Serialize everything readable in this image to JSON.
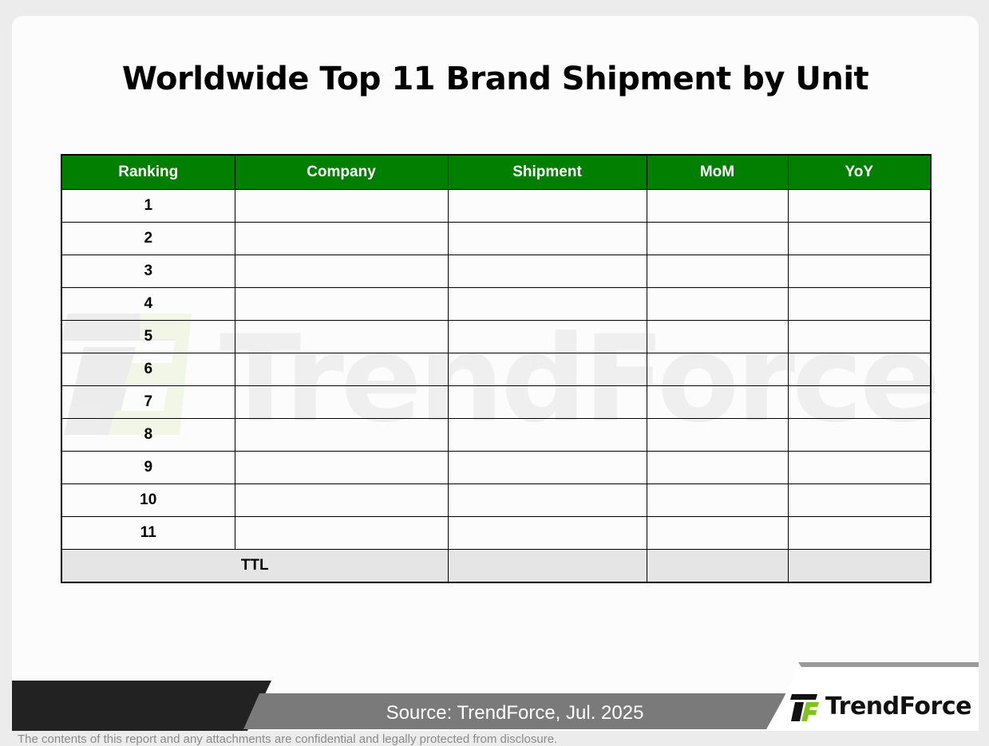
{
  "title": "Worldwide Top 11 Brand Shipment by Unit",
  "table": {
    "headers": [
      "Ranking",
      "Company",
      "Shipment",
      "MoM",
      "YoY"
    ],
    "rows": [
      {
        "rank": "1",
        "company": "",
        "shipment": "",
        "mom": "",
        "yoy": ""
      },
      {
        "rank": "2",
        "company": "",
        "shipment": "",
        "mom": "",
        "yoy": ""
      },
      {
        "rank": "3",
        "company": "",
        "shipment": "",
        "mom": "",
        "yoy": ""
      },
      {
        "rank": "4",
        "company": "",
        "shipment": "",
        "mom": "",
        "yoy": ""
      },
      {
        "rank": "5",
        "company": "",
        "shipment": "",
        "mom": "",
        "yoy": ""
      },
      {
        "rank": "6",
        "company": "",
        "shipment": "",
        "mom": "",
        "yoy": ""
      },
      {
        "rank": "7",
        "company": "",
        "shipment": "",
        "mom": "",
        "yoy": ""
      },
      {
        "rank": "8",
        "company": "",
        "shipment": "",
        "mom": "",
        "yoy": ""
      },
      {
        "rank": "9",
        "company": "",
        "shipment": "",
        "mom": "",
        "yoy": ""
      },
      {
        "rank": "10",
        "company": "",
        "shipment": "",
        "mom": "",
        "yoy": ""
      },
      {
        "rank": "11",
        "company": "",
        "shipment": "",
        "mom": "",
        "yoy": ""
      }
    ],
    "total": {
      "label": "TTL",
      "shipment": "",
      "mom": "",
      "yoy": ""
    }
  },
  "watermark_text": "TrendForce",
  "footer": {
    "source": "Source: TrendForce, Jul. 2025",
    "brand": "TrendForce",
    "disclaimer": "The contents of this report and any attachments are confidential and legally protected from disclosure."
  },
  "colors": {
    "header_green": "#007f00",
    "total_row_gray": "#e5e5e5",
    "logo_green": "#7fc41c"
  },
  "icons": [
    "trendforce-logo-icon"
  ]
}
